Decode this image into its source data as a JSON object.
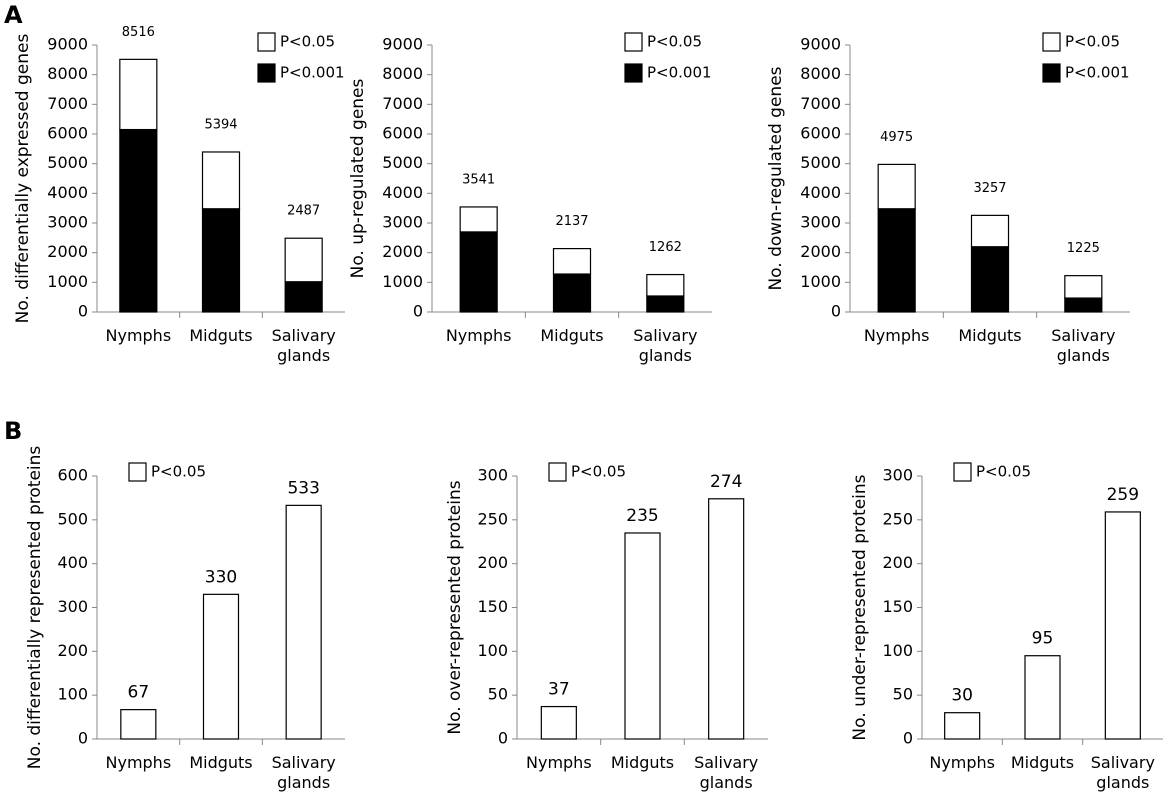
{
  "panels": [
    "A",
    "B"
  ],
  "chart_data": [
    {
      "type": "bar",
      "stacked": true,
      "ylabel": "No. differentially expressed genes",
      "categories": [
        "Nymphs",
        "Midguts",
        "Salivary glands"
      ],
      "series": [
        {
          "name": "P<0.05",
          "color": "#ffffff",
          "values": [
            2366,
            1914,
            1467
          ]
        },
        {
          "name": "P<0.001",
          "color": "#000000",
          "values": [
            6150,
            3480,
            1020
          ]
        }
      ],
      "totals": [
        8516,
        5394,
        2487
      ],
      "ylim": [
        0,
        9000
      ],
      "yticks": [
        0,
        1000,
        2000,
        3000,
        4000,
        5000,
        6000,
        7000,
        8000,
        9000
      ],
      "legend": "upper right"
    },
    {
      "type": "bar",
      "stacked": true,
      "ylabel": "No. up-regulated genes",
      "categories": [
        "Nymphs",
        "Midguts",
        "Salivary glands"
      ],
      "series": [
        {
          "name": "P<0.05",
          "color": "#ffffff",
          "values": [
            841,
            857,
            722
          ]
        },
        {
          "name": "P<0.001",
          "color": "#000000",
          "values": [
            2700,
            1280,
            540
          ]
        }
      ],
      "totals": [
        3541,
        2137,
        1262
      ],
      "ylim": [
        0,
        9000
      ],
      "yticks": [
        0,
        1000,
        2000,
        3000,
        4000,
        5000,
        6000,
        7000,
        8000,
        9000
      ],
      "legend": "upper right"
    },
    {
      "type": "bar",
      "stacked": true,
      "ylabel": "No. down-regulated genes",
      "categories": [
        "Nymphs",
        "Midguts",
        "Salivary glands"
      ],
      "series": [
        {
          "name": "P<0.05",
          "color": "#ffffff",
          "values": [
            1495,
            1057,
            755
          ]
        },
        {
          "name": "P<0.001",
          "color": "#000000",
          "values": [
            3480,
            2200,
            470
          ]
        }
      ],
      "totals": [
        4975,
        3257,
        1225
      ],
      "ylim": [
        0,
        9000
      ],
      "yticks": [
        0,
        1000,
        2000,
        3000,
        4000,
        5000,
        6000,
        7000,
        8000,
        9000
      ],
      "legend": "upper right"
    },
    {
      "type": "bar",
      "ylabel": "No. differentially represented proteins",
      "categories": [
        "Nymphs",
        "Midguts",
        "Salivary glands"
      ],
      "series": [
        {
          "name": "P<0.05",
          "color": "#ffffff",
          "values": [
            67,
            330,
            533
          ]
        }
      ],
      "ylim": [
        0,
        600
      ],
      "yticks": [
        0,
        100,
        200,
        300,
        400,
        500,
        600
      ],
      "legend": "upper left"
    },
    {
      "type": "bar",
      "ylabel": "No. over-represented proteins",
      "categories": [
        "Nymphs",
        "Midguts",
        "Salivary glands"
      ],
      "series": [
        {
          "name": "P<0.05",
          "color": "#ffffff",
          "values": [
            37,
            235,
            274
          ]
        }
      ],
      "ylim": [
        0,
        300
      ],
      "yticks": [
        0,
        50,
        100,
        150,
        200,
        250,
        300
      ],
      "legend": "upper left"
    },
    {
      "type": "bar",
      "ylabel": "No. under-represented proteins",
      "categories": [
        "Nymphs",
        "Midguts",
        "Salivary glands"
      ],
      "series": [
        {
          "name": "P<0.05",
          "color": "#ffffff",
          "values": [
            30,
            95,
            259
          ]
        }
      ],
      "ylim": [
        0,
        300
      ],
      "yticks": [
        0,
        50,
        100,
        150,
        200,
        250,
        300
      ],
      "legend": "upper left"
    }
  ]
}
